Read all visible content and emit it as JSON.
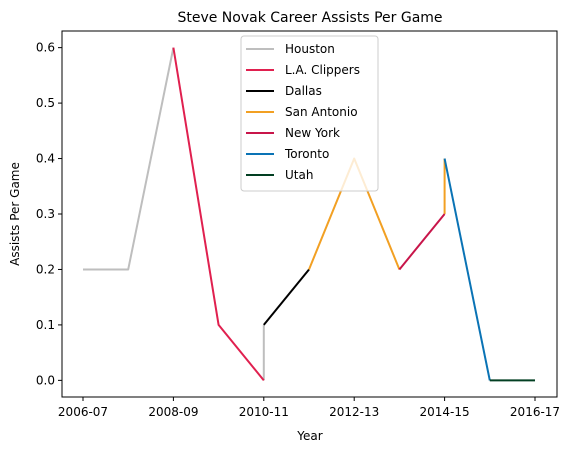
{
  "chart_data": {
    "type": "line",
    "title": "Steve Novak Career Assists Per Game",
    "xlabel": "Year",
    "ylabel": "Assists Per Game",
    "x_categories": [
      "2006-07",
      "2007-08",
      "2008-09",
      "2009-10",
      "2010-11",
      "2011-12",
      "2012-13",
      "2013-14",
      "2014-15",
      "2015-16",
      "2016-17"
    ],
    "x_tick_labels": [
      "2006-07",
      "2008-09",
      "2010-11",
      "2012-13",
      "2014-15",
      "2016-17"
    ],
    "y_ticks": [
      0.0,
      0.1,
      0.2,
      0.3,
      0.4,
      0.5,
      0.6
    ],
    "y_tick_labels": [
      "0.0",
      "0.1",
      "0.2",
      "0.3",
      "0.4",
      "0.5",
      "0.6"
    ],
    "ylim": [
      -0.03,
      0.63
    ],
    "legend_position": "top-center",
    "grid": false,
    "series": [
      {
        "name": "Houston",
        "color": "#bebebe",
        "points": [
          [
            "2006-07",
            0.2
          ],
          [
            "2007-08",
            0.2
          ],
          [
            "2008-09",
            0.6
          ]
        ]
      },
      {
        "name": "L.A. Clippers",
        "color": "#e0204f",
        "points": [
          [
            "2008-09",
            0.6
          ],
          [
            "2009-10",
            0.1
          ],
          [
            "2010-11",
            0.0
          ]
        ]
      },
      {
        "name": "Dallas",
        "color": "#000000",
        "points": [
          [
            "2010-11",
            0.1
          ],
          [
            "2011-12",
            0.2
          ]
        ]
      },
      {
        "name": "San Antonio",
        "color": "#f2a023",
        "points": [
          [
            "2011-12",
            0.2
          ],
          [
            "2012-13",
            0.4
          ],
          [
            "2013-14",
            0.2
          ]
        ]
      },
      {
        "name": "New York",
        "color": "#c8154a",
        "points": [
          [
            "2013-14",
            0.2
          ],
          [
            "2014-15",
            0.3
          ]
        ]
      },
      {
        "name": "Toronto",
        "color": "#0a73b5",
        "points": [
          [
            "2014-15",
            0.4
          ],
          [
            "2015-16",
            0.0
          ]
        ]
      },
      {
        "name": "Utah",
        "color": "#023f22",
        "points": [
          [
            "2015-16",
            0.0
          ],
          [
            "2016-17",
            0.0
          ]
        ]
      }
    ],
    "connectors": [
      {
        "color": "#bebebe",
        "points": [
          [
            "2010-11",
            0.0
          ],
          [
            "2010-11",
            0.1
          ]
        ]
      },
      {
        "color": "#f2a023",
        "points": [
          [
            "2014-15",
            0.3
          ],
          [
            "2014-15",
            0.4
          ]
        ]
      }
    ]
  }
}
